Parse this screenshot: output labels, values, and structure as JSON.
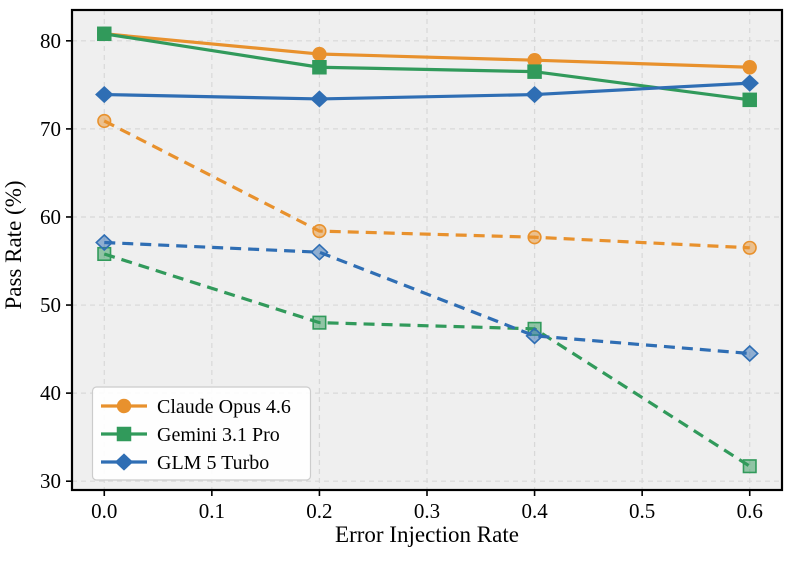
{
  "figure": {
    "background_color": "#ffffff",
    "plot_background_color": "#efefef",
    "grid_color": "#d8d8d8",
    "frame_color": "#000000",
    "legend_border_color": "#cccccc",
    "legend_background_color": "#ffffff"
  },
  "chart_data": {
    "type": "line",
    "title": "",
    "xlabel": "Error Injection Rate",
    "ylabel": "Pass Rate (%)",
    "x": [
      0.0,
      0.2,
      0.4,
      0.6
    ],
    "xlim": [
      -0.03,
      0.63
    ],
    "ylim": [
      29.0,
      83.5
    ],
    "xtick_values": [
      0.0,
      0.1,
      0.2,
      0.3,
      0.4,
      0.5,
      0.6
    ],
    "xtick_labels": [
      "0.0",
      "0.1",
      "0.2",
      "0.3",
      "0.4",
      "0.5",
      "0.6"
    ],
    "ytick_values": [
      30,
      40,
      50,
      60,
      70,
      80
    ],
    "ytick_labels": [
      "30",
      "40",
      "50",
      "60",
      "70",
      "80"
    ],
    "grid": true,
    "grid_style": "dashed",
    "legend_position": "lower left",
    "legend_entries": [
      "Claude Opus 4.6",
      "Gemini 3.1 Pro",
      "GLM 5 Turbo"
    ],
    "series": [
      {
        "name": "Claude Opus 4.6",
        "marker": "circle",
        "color": "#E8912D",
        "line_style": "solid",
        "in_legend": true,
        "values": [
          80.8,
          78.5,
          77.8,
          77.0
        ]
      },
      {
        "name": "Gemini 3.1 Pro",
        "marker": "square",
        "color": "#319A5B",
        "line_style": "solid",
        "in_legend": true,
        "values": [
          80.8,
          77.0,
          76.5,
          73.3
        ]
      },
      {
        "name": "GLM 5 Turbo",
        "marker": "diamond",
        "color": "#2F6EB4",
        "line_style": "solid",
        "in_legend": true,
        "values": [
          73.9,
          73.4,
          73.9,
          75.2
        ]
      },
      {
        "name": "Claude Opus 4.6",
        "marker": "circle",
        "color": "#E8912D",
        "line_style": "dashed",
        "in_legend": false,
        "values": [
          70.9,
          58.4,
          57.7,
          56.5
        ]
      },
      {
        "name": "Gemini 3.1 Pro",
        "marker": "square",
        "color": "#319A5B",
        "line_style": "dashed",
        "in_legend": false,
        "values": [
          55.8,
          48.0,
          47.3,
          31.7
        ]
      },
      {
        "name": "GLM 5 Turbo",
        "marker": "diamond",
        "color": "#2F6EB4",
        "line_style": "dashed",
        "in_legend": false,
        "values": [
          57.1,
          56.0,
          46.5,
          44.5
        ]
      }
    ]
  }
}
